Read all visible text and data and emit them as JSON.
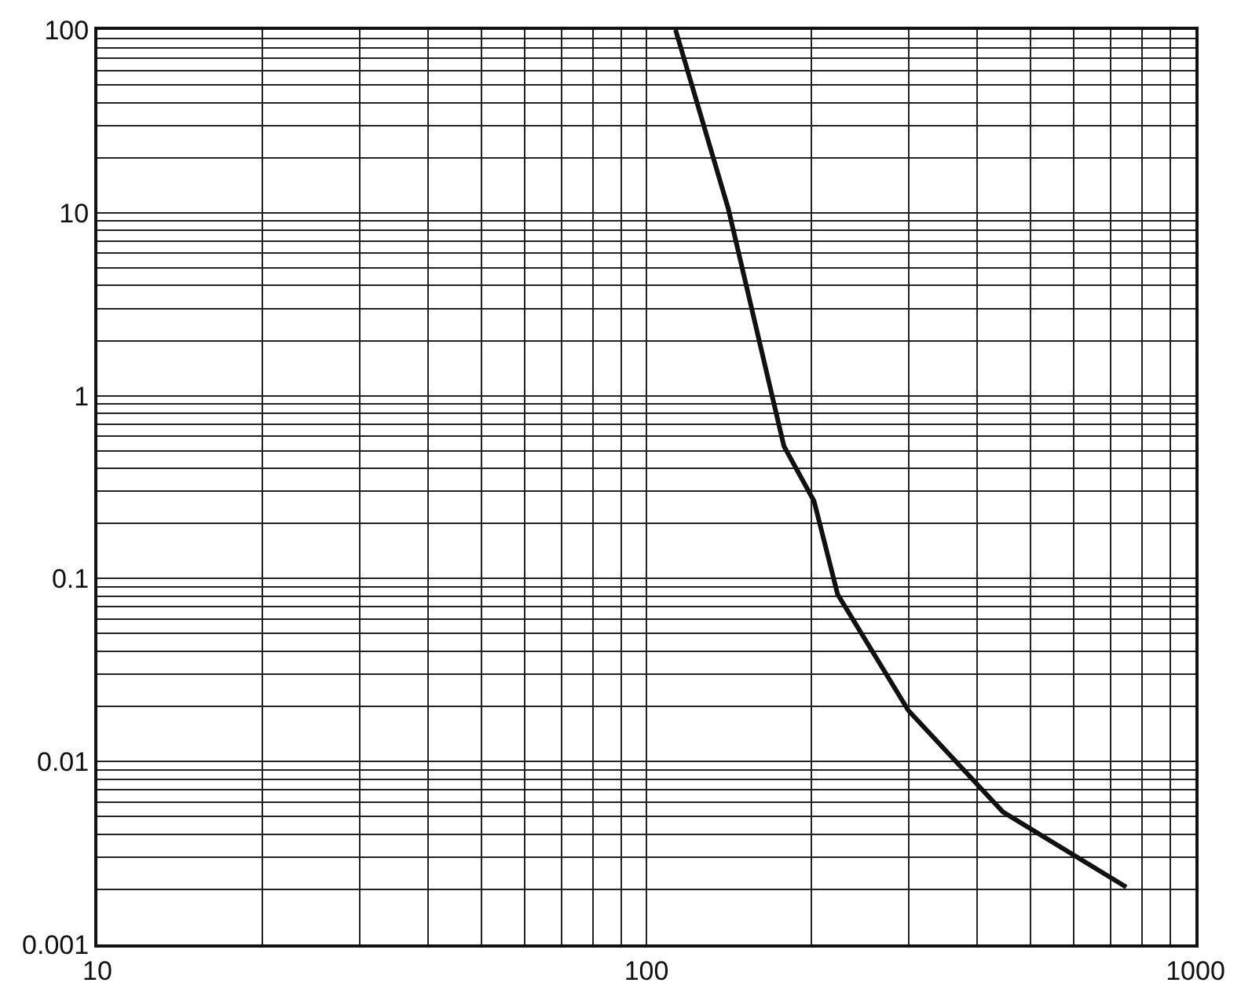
{
  "chart_data": {
    "type": "line",
    "x": [
      113,
      141,
      178,
      202,
      223,
      300,
      446,
      748
    ],
    "values": [
      100,
      10.5,
      0.53,
      0.265,
      0.082,
      0.019,
      0.0053,
      0.00206
    ],
    "color": "#111111",
    "log": "xy",
    "xlim": [
      10,
      1000
    ],
    "xticks": [
      10,
      100,
      1000
    ],
    "ylim": [
      0.001,
      100
    ],
    "yticks": [
      0.001,
      0.01,
      0.1,
      1,
      10,
      100
    ],
    "grid": true,
    "marker": "none",
    "line_style": "solid"
  }
}
